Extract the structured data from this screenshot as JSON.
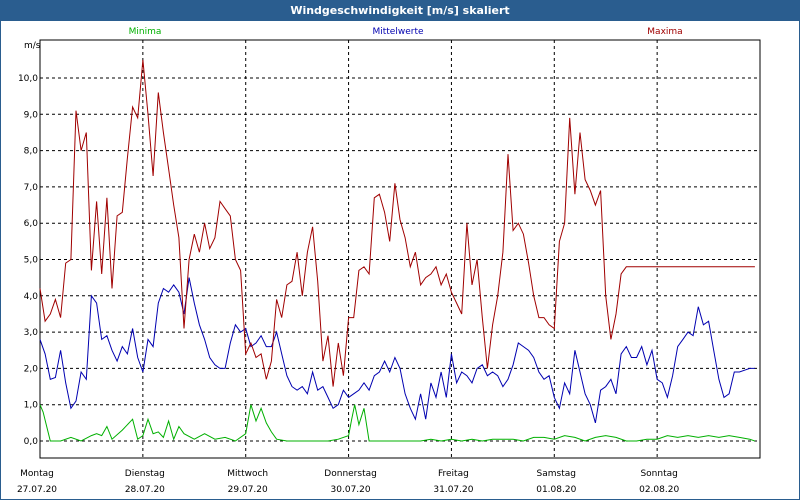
{
  "title": "Windgeschwindigkeit [m/s] skaliert",
  "colors": {
    "min": "#00b000",
    "mean": "#0000b0",
    "max": "#a00000",
    "grid": "#000000",
    "header": "#2a5d8f"
  },
  "chart_data": {
    "type": "line",
    "title": "Windgeschwindigkeit [m/s] skaliert",
    "ylabel": "m/s",
    "xlabel": "",
    "ylim": [
      0,
      11
    ],
    "yticks": [
      "0,0",
      "1,0",
      "2,0",
      "3,0",
      "4,0",
      "5,0",
      "6,0",
      "7,0",
      "8,0",
      "9,0",
      "10,0"
    ],
    "xlim": [
      0,
      7
    ],
    "days": [
      {
        "name": "Montag",
        "date": "27.07.20"
      },
      {
        "name": "Dienstag",
        "date": "28.07.20"
      },
      {
        "name": "Mittwoch",
        "date": "29.07.20"
      },
      {
        "name": "Donnerstag",
        "date": "30.07.20"
      },
      {
        "name": "Freitag",
        "date": "31.07.20"
      },
      {
        "name": "Samstag",
        "date": "01.08.20"
      },
      {
        "name": "Sonntag",
        "date": "02.08.20"
      }
    ],
    "grid": true,
    "legend": "top",
    "series": [
      {
        "name": "Minima",
        "color": "#00b000",
        "x": [
          0,
          0.03,
          0.1,
          0.2,
          0.3,
          0.4,
          0.5,
          0.55,
          0.6,
          0.65,
          0.7,
          0.8,
          0.9,
          0.95,
          1.0,
          1.05,
          1.1,
          1.15,
          1.2,
          1.25,
          1.3,
          1.35,
          1.4,
          1.5,
          1.6,
          1.7,
          1.8,
          1.9,
          2.0,
          2.05,
          2.1,
          2.15,
          2.2,
          2.25,
          2.3,
          2.4,
          2.5,
          2.6,
          2.7,
          2.8,
          2.9,
          3.0,
          3.03,
          3.06,
          3.1,
          3.15,
          3.2,
          3.3,
          3.4,
          3.5,
          3.6,
          3.7,
          3.8,
          3.9,
          4.0,
          4.1,
          4.2,
          4.3,
          4.4,
          4.5,
          4.6,
          4.7,
          4.8,
          4.9,
          5.0,
          5.1,
          5.2,
          5.3,
          5.4,
          5.5,
          5.6,
          5.7,
          5.8,
          5.9,
          6.0,
          6.1,
          6.2,
          6.3,
          6.4,
          6.5,
          6.6,
          6.7,
          6.8,
          6.9,
          6.95
        ],
        "values": [
          1.0,
          0.8,
          0.0,
          0.0,
          0.1,
          0.0,
          0.15,
          0.2,
          0.15,
          0.4,
          0.05,
          0.3,
          0.6,
          0.05,
          0.15,
          0.6,
          0.2,
          0.25,
          0.1,
          0.55,
          0.05,
          0.4,
          0.2,
          0.05,
          0.2,
          0.05,
          0.1,
          0.0,
          0.2,
          1.0,
          0.55,
          0.9,
          0.5,
          0.25,
          0.05,
          0.0,
          0.0,
          0.0,
          0.0,
          0.0,
          0.05,
          0.15,
          0.6,
          1.0,
          0.45,
          0.9,
          0.0,
          0.0,
          0.0,
          0.0,
          0.0,
          0.0,
          0.05,
          0.0,
          0.05,
          0.0,
          0.05,
          0.0,
          0.05,
          0.05,
          0.05,
          0.0,
          0.1,
          0.1,
          0.05,
          0.15,
          0.1,
          0.0,
          0.1,
          0.15,
          0.1,
          0.0,
          0.0,
          0.05,
          0.05,
          0.15,
          0.1,
          0.15,
          0.1,
          0.15,
          0.1,
          0.15,
          0.1,
          0.05,
          0.0
        ]
      },
      {
        "name": "Mittelwerte",
        "color": "#0000b0",
        "x": [
          0,
          0.05,
          0.1,
          0.15,
          0.2,
          0.25,
          0.3,
          0.35,
          0.4,
          0.45,
          0.5,
          0.55,
          0.6,
          0.65,
          0.7,
          0.75,
          0.8,
          0.85,
          0.9,
          0.95,
          1.0,
          1.05,
          1.1,
          1.15,
          1.2,
          1.25,
          1.3,
          1.35,
          1.4,
          1.45,
          1.5,
          1.55,
          1.6,
          1.65,
          1.7,
          1.75,
          1.8,
          1.85,
          1.9,
          1.95,
          2.0,
          2.05,
          2.1,
          2.15,
          2.2,
          2.25,
          2.3,
          2.35,
          2.4,
          2.45,
          2.5,
          2.55,
          2.6,
          2.65,
          2.7,
          2.75,
          2.8,
          2.85,
          2.9,
          2.95,
          3.0,
          3.05,
          3.1,
          3.15,
          3.2,
          3.25,
          3.3,
          3.35,
          3.4,
          3.45,
          3.5,
          3.55,
          3.6,
          3.65,
          3.7,
          3.75,
          3.8,
          3.85,
          3.9,
          3.95,
          4.0,
          4.05,
          4.1,
          4.15,
          4.2,
          4.25,
          4.3,
          4.35,
          4.4,
          4.45,
          4.5,
          4.55,
          4.6,
          4.65,
          4.7,
          4.75,
          4.8,
          4.85,
          4.9,
          4.95,
          5.0,
          5.05,
          5.1,
          5.15,
          5.2,
          5.25,
          5.3,
          5.35,
          5.4,
          5.45,
          5.5,
          5.55,
          5.6,
          5.65,
          5.7,
          5.75,
          5.8,
          5.85,
          5.9,
          5.95,
          6.0,
          6.05,
          6.1,
          6.15,
          6.2,
          6.25,
          6.3,
          6.35,
          6.4,
          6.45,
          6.5,
          6.55,
          6.6,
          6.65,
          6.7,
          6.75,
          6.8,
          6.85,
          6.9,
          6.95
        ],
        "values": [
          2.8,
          2.4,
          1.7,
          1.75,
          2.5,
          1.6,
          0.9,
          1.1,
          1.9,
          1.7,
          4.0,
          3.8,
          2.8,
          2.9,
          2.5,
          2.2,
          2.6,
          2.4,
          3.1,
          2.3,
          1.9,
          2.8,
          2.6,
          3.8,
          4.2,
          4.1,
          4.3,
          4.1,
          3.5,
          4.5,
          3.8,
          3.2,
          2.8,
          2.3,
          2.1,
          2.0,
          2.0,
          2.7,
          3.2,
          3.0,
          3.1,
          2.6,
          2.7,
          2.9,
          2.6,
          2.6,
          3.0,
          2.4,
          1.8,
          1.5,
          1.4,
          1.5,
          1.3,
          1.9,
          1.4,
          1.5,
          1.2,
          0.9,
          1.0,
          1.4,
          1.2,
          1.3,
          1.4,
          1.6,
          1.4,
          1.8,
          1.9,
          2.2,
          1.9,
          2.3,
          2.0,
          1.3,
          0.9,
          0.6,
          1.3,
          0.6,
          1.6,
          1.2,
          1.9,
          1.2,
          2.4,
          1.6,
          1.9,
          1.8,
          1.6,
          2.0,
          2.1,
          1.8,
          1.9,
          1.8,
          1.5,
          1.7,
          2.1,
          2.7,
          2.6,
          2.5,
          2.3,
          1.9,
          1.7,
          1.8,
          1.2,
          0.9,
          1.6,
          1.3,
          2.5,
          1.9,
          1.3,
          1.0,
          0.5,
          1.4,
          1.5,
          1.7,
          1.3,
          2.4,
          2.6,
          2.3,
          2.3,
          2.6,
          2.1,
          2.5,
          1.7,
          1.6,
          1.2,
          1.8,
          2.6,
          2.8,
          3.0,
          2.9,
          3.7,
          3.2,
          3.3,
          2.5,
          1.7,
          1.2,
          1.3,
          1.9,
          1.9,
          1.95,
          2.0,
          2.0
        ]
      },
      {
        "name": "Maxima",
        "color": "#a00000",
        "x": [
          0,
          0.05,
          0.1,
          0.15,
          0.2,
          0.25,
          0.3,
          0.35,
          0.4,
          0.45,
          0.5,
          0.55,
          0.6,
          0.65,
          0.7,
          0.75,
          0.8,
          0.85,
          0.9,
          0.95,
          1.0,
          1.05,
          1.1,
          1.15,
          1.2,
          1.25,
          1.3,
          1.35,
          1.4,
          1.45,
          1.5,
          1.55,
          1.6,
          1.65,
          1.7,
          1.75,
          1.8,
          1.85,
          1.9,
          1.95,
          2.0,
          2.05,
          2.1,
          2.15,
          2.2,
          2.25,
          2.3,
          2.35,
          2.4,
          2.45,
          2.5,
          2.55,
          2.6,
          2.65,
          2.7,
          2.75,
          2.8,
          2.85,
          2.9,
          2.95,
          3.0,
          3.05,
          3.1,
          3.15,
          3.2,
          3.25,
          3.3,
          3.35,
          3.4,
          3.45,
          3.5,
          3.55,
          3.6,
          3.65,
          3.7,
          3.75,
          3.8,
          3.85,
          3.9,
          3.95,
          4.0,
          4.05,
          4.1,
          4.15,
          4.2,
          4.25,
          4.3,
          4.35,
          4.4,
          4.45,
          4.5,
          4.55,
          4.6,
          4.65,
          4.7,
          4.75,
          4.8,
          4.85,
          4.9,
          4.95,
          5.0,
          5.05,
          5.1,
          5.15,
          5.2,
          5.25,
          5.3,
          5.35,
          5.4,
          5.45,
          5.5,
          5.55,
          5.6,
          5.65,
          5.7,
          5.75,
          5.8,
          5.85,
          5.9,
          5.95,
          6.0,
          6.05,
          6.1,
          6.15,
          6.2,
          6.25,
          6.3,
          6.35,
          6.4,
          6.45,
          6.5,
          6.55,
          6.6,
          6.65,
          6.7,
          6.75,
          6.8,
          6.85,
          6.9,
          6.95
        ],
        "values": [
          4.2,
          3.3,
          3.5,
          3.9,
          3.4,
          4.9,
          5.0,
          9.1,
          8.0,
          8.5,
          4.7,
          6.6,
          4.6,
          6.7,
          4.2,
          6.2,
          6.3,
          7.8,
          9.2,
          8.9,
          10.5,
          9.0,
          7.3,
          9.6,
          8.5,
          7.5,
          6.5,
          5.6,
          3.1,
          5.0,
          5.7,
          5.2,
          6.0,
          5.3,
          5.6,
          6.6,
          6.4,
          6.2,
          5.0,
          4.7,
          2.4,
          2.7,
          2.3,
          2.4,
          1.7,
          2.2,
          3.9,
          3.4,
          4.3,
          4.4,
          5.2,
          4.0,
          5.2,
          5.9,
          4.4,
          2.2,
          2.9,
          1.5,
          2.7,
          1.8,
          3.4,
          3.4,
          4.7,
          4.8,
          4.6,
          6.7,
          6.8,
          6.3,
          5.5,
          7.1,
          6.1,
          5.6,
          4.8,
          5.2,
          4.3,
          4.5,
          4.6,
          4.8,
          4.3,
          4.6,
          4.1,
          3.8,
          3.5,
          6.0,
          4.3,
          5.0,
          3.4,
          2.0,
          3.2,
          4.0,
          5.2,
          7.9,
          5.8,
          6.0,
          5.7,
          4.9,
          4.0,
          3.4,
          3.4,
          3.2,
          3.1,
          5.5,
          6.0,
          8.9,
          6.8,
          8.5,
          7.2,
          6.9,
          6.5,
          6.9,
          4.0,
          2.8,
          3.5,
          4.6,
          4.8,
          4.8,
          4.8,
          4.8,
          4.8,
          4.8,
          4.8,
          4.8,
          4.8,
          4.8,
          4.8,
          4.8,
          4.8,
          4.8,
          4.8,
          4.8,
          4.8,
          4.8,
          4.8,
          4.8,
          4.8,
          4.8,
          4.8,
          4.8,
          4.8,
          4.8
        ]
      }
    ]
  }
}
